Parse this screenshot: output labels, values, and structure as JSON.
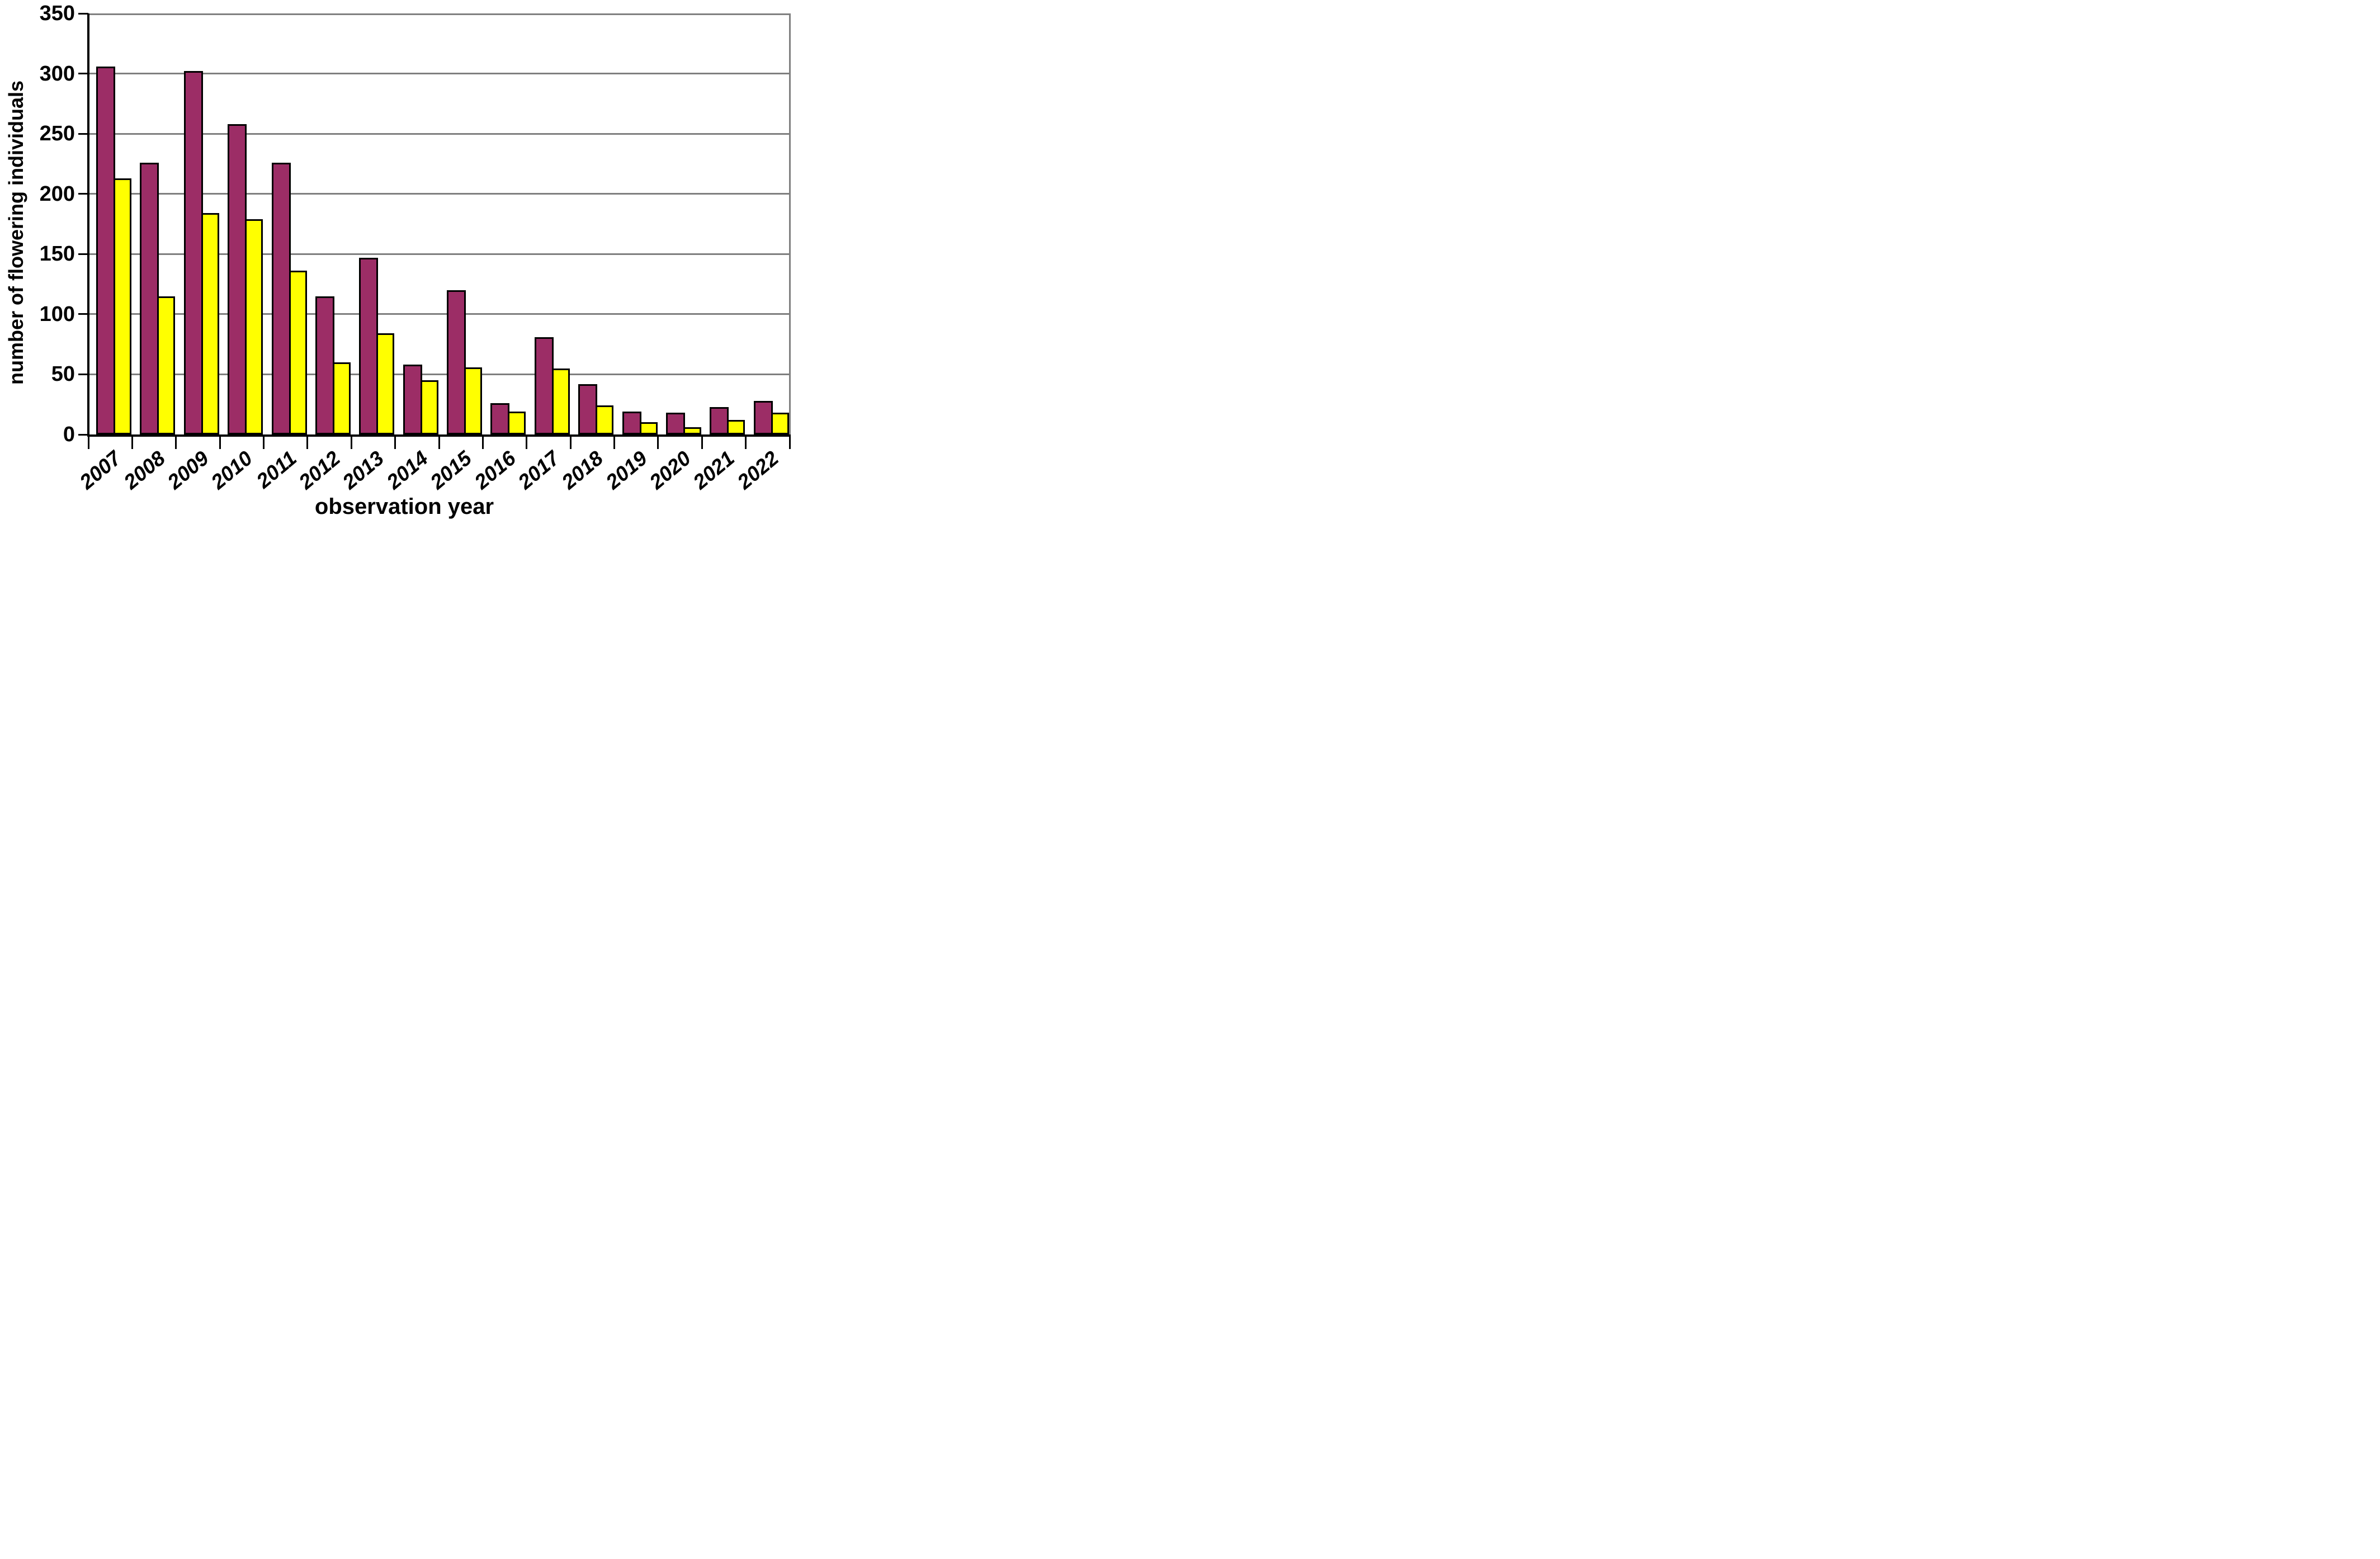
{
  "chart_data": {
    "type": "bar",
    "title": "",
    "xlabel": "observation year",
    "ylabel": "number of flowering individuals",
    "categories": [
      "2007",
      "2008",
      "2009",
      "2010",
      "2011",
      "2012",
      "2013",
      "2014",
      "2015",
      "2016",
      "2017",
      "2018",
      "2019",
      "2020",
      "2021",
      "2022"
    ],
    "series": [
      {
        "name": "purple-bars",
        "color": "#9C2D66",
        "values": [
          306,
          226,
          302,
          258,
          226,
          115,
          147,
          58,
          120,
          26,
          81,
          42,
          19,
          18,
          23,
          28
        ]
      },
      {
        "name": "yellow-bars",
        "color": "#FFFF00",
        "values": [
          213,
          115,
          184,
          179,
          136,
          60,
          84,
          45,
          56,
          19,
          55,
          24,
          10,
          6,
          12,
          18
        ]
      }
    ],
    "ylim": [
      0,
      350
    ],
    "ytick_interval": 50,
    "ytick_labels": [
      "0",
      "50",
      "100",
      "150",
      "200",
      "250",
      "300",
      "350"
    ],
    "grid": true,
    "legend": false
  },
  "colors": {
    "background": "#FFFFFF",
    "gridline": "#7F7F7F",
    "frame_gray": "#808080",
    "axis_black": "#000000",
    "bar_border": "#000000"
  }
}
